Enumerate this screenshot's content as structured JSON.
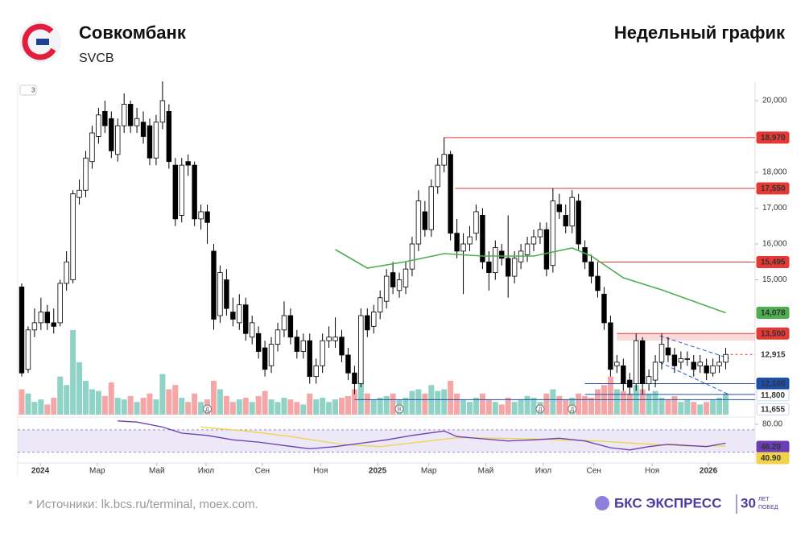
{
  "header": {
    "title": "Совкомбанк",
    "ticker": "SVCB",
    "chart_kind": "Недельный график",
    "badge": "3"
  },
  "footer": {
    "sources": "* Источники: lk.bcs.ru/terminal, moex.com.",
    "brand": "БКС ЭКСПРЕСС",
    "years": "30",
    "years_text_1": "ЛЕТ",
    "years_text_2": "ПОБЕД"
  },
  "chart_data": {
    "type": "candlestick",
    "ylim": [
      11236,
      20540
    ],
    "yticks": [
      {
        "value": 15000,
        "label": "15,000"
      },
      {
        "value": 16000,
        "label": "16,000"
      },
      {
        "value": 17000,
        "label": "17,000"
      },
      {
        "value": 18000,
        "label": "18,000"
      },
      {
        "value": 20000,
        "label": "20,000"
      }
    ],
    "xticks": [
      {
        "value": 2.9,
        "label": "2024"
      },
      {
        "value": 11.8,
        "label": "Мар"
      },
      {
        "value": 21.1,
        "label": "Май"
      },
      {
        "value": 28.8,
        "label": "Июл"
      },
      {
        "value": 37.6,
        "label": "Сен"
      },
      {
        "value": 46.7,
        "label": "Ноя"
      },
      {
        "value": 55.6,
        "label": "2025"
      },
      {
        "value": 63.6,
        "label": "Мар"
      },
      {
        "value": 72.5,
        "label": "Май"
      },
      {
        "value": 81.5,
        "label": "Июл"
      },
      {
        "value": 89.4,
        "label": "Сен"
      },
      {
        "value": 98.5,
        "label": "Ноя"
      },
      {
        "value": 107.3,
        "label": "2026"
      }
    ],
    "up_color": "#ffffff",
    "down_color": "#000000",
    "volume_up_color": "#8fd3c6",
    "volume_down_color": "#f5a6a6",
    "candles": [
      [
        14800,
        14900,
        12300,
        12400
      ],
      [
        12500,
        13700,
        12400,
        13600
      ],
      [
        13600,
        14200,
        13400,
        13800
      ],
      [
        13800,
        14500,
        13600,
        14100
      ],
      [
        14100,
        14300,
        13600,
        13800
      ],
      [
        13800,
        14200,
        13500,
        13700
      ],
      [
        13800,
        15000,
        13700,
        14900
      ],
      [
        14900,
        15800,
        14700,
        15500
      ],
      [
        15000,
        17500,
        14900,
        17400
      ],
      [
        17300,
        17800,
        17100,
        17500
      ],
      [
        17500,
        18600,
        17300,
        18400
      ],
      [
        18300,
        19300,
        18100,
        19100
      ],
      [
        19000,
        19800,
        18800,
        19600
      ],
      [
        19700,
        20000,
        19100,
        19300
      ],
      [
        19500,
        19700,
        18400,
        18600
      ],
      [
        18500,
        19500,
        18300,
        19300
      ],
      [
        19300,
        20200,
        19100,
        19900
      ],
      [
        19900,
        20000,
        19100,
        19300
      ],
      [
        19300,
        19800,
        19100,
        19500
      ],
      [
        19400,
        19700,
        18800,
        19000
      ],
      [
        19300,
        19500,
        18200,
        18400
      ],
      [
        18400,
        19600,
        18200,
        19400
      ],
      [
        19400,
        20540,
        19200,
        20000
      ],
      [
        19700,
        19900,
        18100,
        18300
      ],
      [
        18200,
        18400,
        16500,
        16700
      ],
      [
        16800,
        18400,
        16600,
        18200
      ],
      [
        18300,
        18500,
        17900,
        18200
      ],
      [
        18200,
        18300,
        16500,
        16700
      ],
      [
        16700,
        17100,
        16400,
        16900
      ],
      [
        16900,
        17100,
        16000,
        16600
      ],
      [
        15800,
        16000,
        13600,
        13900
      ],
      [
        14000,
        15400,
        13800,
        15200
      ],
      [
        15000,
        15300,
        14000,
        14200
      ],
      [
        14100,
        14500,
        13700,
        13900
      ],
      [
        13800,
        14600,
        13600,
        14300
      ],
      [
        14300,
        14500,
        13300,
        13500
      ],
      [
        13400,
        14000,
        13200,
        13800
      ],
      [
        13500,
        13700,
        12800,
        13000
      ],
      [
        13100,
        13300,
        12300,
        12500
      ],
      [
        12600,
        13400,
        12400,
        13200
      ],
      [
        13200,
        13800,
        13000,
        13600
      ],
      [
        13600,
        14400,
        13400,
        14000
      ],
      [
        14000,
        14200,
        13200,
        13400
      ],
      [
        13400,
        13600,
        12800,
        13000
      ],
      [
        13000,
        13500,
        12800,
        13300
      ],
      [
        13300,
        13500,
        12100,
        12300
      ],
      [
        12300,
        12800,
        12100,
        12600
      ],
      [
        12600,
        13500,
        12400,
        13300
      ],
      [
        13300,
        13700,
        13100,
        13400
      ],
      [
        13300,
        13950,
        13100,
        13400
      ],
      [
        13400,
        13600,
        12700,
        12900
      ],
      [
        12900,
        13100,
        12200,
        12400
      ],
      [
        12400,
        12600,
        11800,
        12100
      ],
      [
        12100,
        14200,
        12000,
        14000
      ],
      [
        14000,
        14200,
        13400,
        13600
      ],
      [
        13700,
        14300,
        13500,
        14100
      ],
      [
        14100,
        14700,
        13900,
        14500
      ],
      [
        14400,
        15300,
        14200,
        15100
      ],
      [
        15200,
        15500,
        14600,
        14800
      ],
      [
        14700,
        15200,
        14500,
        15000
      ],
      [
        14800,
        15500,
        14600,
        15300
      ],
      [
        15300,
        16200,
        15100,
        16000
      ],
      [
        16000,
        17500,
        15800,
        17200
      ],
      [
        16900,
        17200,
        16200,
        16400
      ],
      [
        16400,
        17800,
        16200,
        17600
      ],
      [
        17600,
        18400,
        17400,
        18200
      ],
      [
        18200,
        18970,
        18000,
        18500
      ],
      [
        18500,
        18600,
        16100,
        16300
      ],
      [
        16300,
        16700,
        15600,
        15800
      ],
      [
        15800,
        16300,
        14600,
        16000
      ],
      [
        16000,
        16500,
        15800,
        16200
      ],
      [
        16300,
        17100,
        16100,
        16900
      ],
      [
        16800,
        17000,
        15300,
        15500
      ],
      [
        15500,
        15800,
        14700,
        15200
      ],
      [
        15200,
        16100,
        15000,
        15900
      ],
      [
        15800,
        16000,
        15400,
        15600
      ],
      [
        15600,
        16800,
        14500,
        15100
      ],
      [
        15100,
        15800,
        14900,
        15600
      ],
      [
        15500,
        16000,
        15300,
        15800
      ],
      [
        15700,
        16200,
        15500,
        16000
      ],
      [
        16000,
        16400,
        15800,
        16200
      ],
      [
        16200,
        16600,
        16000,
        16400
      ],
      [
        16400,
        16600,
        15100,
        15300
      ],
      [
        15400,
        17550,
        15200,
        17200
      ],
      [
        17100,
        17400,
        16700,
        16900
      ],
      [
        16800,
        17100,
        16300,
        16500
      ],
      [
        16500,
        17500,
        16300,
        17300
      ],
      [
        17200,
        17400,
        15800,
        16000
      ],
      [
        15900,
        16100,
        15300,
        15500
      ],
      [
        15500,
        15700,
        14900,
        15100
      ],
      [
        15100,
        15495,
        14500,
        14700
      ],
      [
        14600,
        14800,
        13600,
        13800
      ],
      [
        13800,
        14000,
        12300,
        12500
      ],
      [
        12600,
        12900,
        12400,
        12700
      ],
      [
        12600,
        12800,
        11900,
        12100
      ],
      [
        12200,
        12400,
        11800,
        12000
      ],
      [
        12100,
        13500,
        11900,
        13300
      ],
      [
        13300,
        13400,
        11800,
        12100
      ],
      [
        12100,
        12500,
        11900,
        12300
      ],
      [
        12200,
        12900,
        12000,
        12700
      ],
      [
        12700,
        13500,
        12500,
        13200
      ],
      [
        13100,
        13400,
        12700,
        12900
      ],
      [
        12900,
        13100,
        12400,
        12600
      ],
      [
        12700,
        13000,
        12500,
        12800
      ],
      [
        12800,
        13000,
        12600,
        12800
      ],
      [
        12700,
        12900,
        12300,
        12500
      ],
      [
        12600,
        12900,
        12400,
        12700
      ],
      [
        12600,
        12800,
        12200,
        12400
      ],
      [
        12400,
        12800,
        12300,
        12600
      ],
      [
        12600,
        12900,
        12400,
        12700
      ],
      [
        12700,
        13100,
        12500,
        12915
      ]
    ],
    "volume": [
      30,
      25,
      15,
      18,
      12,
      20,
      45,
      35,
      100,
      62,
      40,
      30,
      28,
      22,
      38,
      20,
      18,
      22,
      15,
      20,
      25,
      18,
      48,
      30,
      35,
      20,
      15,
      25,
      15,
      18,
      40,
      30,
      22,
      15,
      18,
      20,
      15,
      22,
      28,
      18,
      15,
      20,
      18,
      15,
      12,
      25,
      18,
      20,
      15,
      18,
      20,
      22,
      30,
      40,
      25,
      18,
      20,
      22,
      25,
      18,
      20,
      28,
      30,
      25,
      35,
      28,
      30,
      40,
      25,
      18,
      15,
      20,
      25,
      18,
      15,
      12,
      20,
      15,
      18,
      22,
      20,
      15,
      25,
      30,
      22,
      18,
      20,
      25,
      22,
      20,
      30,
      35,
      45,
      30,
      28,
      25,
      35,
      30,
      25,
      28,
      20,
      18,
      22,
      15,
      18,
      15,
      12,
      15,
      18,
      20,
      25
    ],
    "moving_average": {
      "color": "#4caf50",
      "x": [
        49,
        54,
        60,
        66,
        72,
        80,
        86,
        89,
        94,
        100,
        107,
        110
      ],
      "values": [
        15843,
        15326,
        15506,
        15730,
        15663,
        15663,
        15888,
        15663,
        15056,
        14719,
        14270,
        14078
      ],
      "value_label": "14,078"
    },
    "levels": [
      {
        "value": 18970,
        "label": "18,970",
        "start": 66,
        "color": "#e53935",
        "style": "solid"
      },
      {
        "value": 17550,
        "label": "17,550",
        "start": 67.7,
        "color": "#e53935",
        "style": "solid"
      },
      {
        "value": 15495,
        "label": "15,495",
        "start": 90,
        "color": "#e53935",
        "style": "solid"
      },
      {
        "value": 13500,
        "label": "13,500",
        "start": 93,
        "color": "#e53935",
        "style": "zone",
        "to": 13300
      },
      {
        "value": 12915,
        "label": "12,915",
        "start": 110,
        "color": "#e53935",
        "style": "dashed"
      },
      {
        "value": 12100,
        "label": "12,100",
        "start": 88,
        "color": "#1e4fa8",
        "style": "solid"
      },
      {
        "value": 11800,
        "label": "11,800",
        "start": 88,
        "color": "#1e4fa8",
        "style": "solid"
      },
      {
        "value": 11655,
        "label": "11,655",
        "start": 52,
        "color": "#1e4fa8",
        "style": "solid"
      }
    ],
    "channel": [
      {
        "x": [
          99.7,
          110.5
        ],
        "values": [
          13438,
          12809
        ]
      },
      {
        "x": [
          99.7,
          110.5
        ],
        "values": [
          12697,
          11798
        ]
      }
    ],
    "events": [
      {
        "x": 29,
        "label": "Д"
      },
      {
        "x": 59,
        "label": "В"
      },
      {
        "x": 81,
        "label": "Д"
      },
      {
        "x": 86,
        "label": "Д"
      }
    ],
    "rsi": {
      "ylim": [
        15,
        90
      ],
      "yticks": [
        {
          "value": 80,
          "label": "80.00"
        }
      ],
      "band": [
        30,
        70
      ],
      "line": {
        "color": "#6a3fb5",
        "x": [
          15,
          18,
          22,
          25,
          29,
          33,
          37,
          41,
          45,
          49,
          53,
          57,
          61,
          66,
          68,
          72,
          76,
          80,
          84,
          88,
          92,
          95,
          98,
          101,
          104,
          107,
          110
        ],
        "values": [
          86,
          84,
          75,
          64,
          60,
          52,
          48,
          42,
          36,
          40,
          46,
          52,
          60,
          68,
          58,
          54,
          50,
          52,
          55,
          50,
          38,
          34,
          40,
          44,
          42,
          40,
          46.2
        ],
        "value_label": "46.20"
      },
      "ma": {
        "color": "#f2d24b",
        "x": [
          28,
          35,
          42,
          50,
          56,
          62,
          68,
          75,
          82,
          90,
          97,
          104,
          110
        ],
        "values": [
          75,
          68,
          58,
          44,
          40,
          48,
          56,
          55,
          53,
          50,
          45,
          41,
          40.9
        ],
        "value_label": "40.90"
      }
    }
  }
}
